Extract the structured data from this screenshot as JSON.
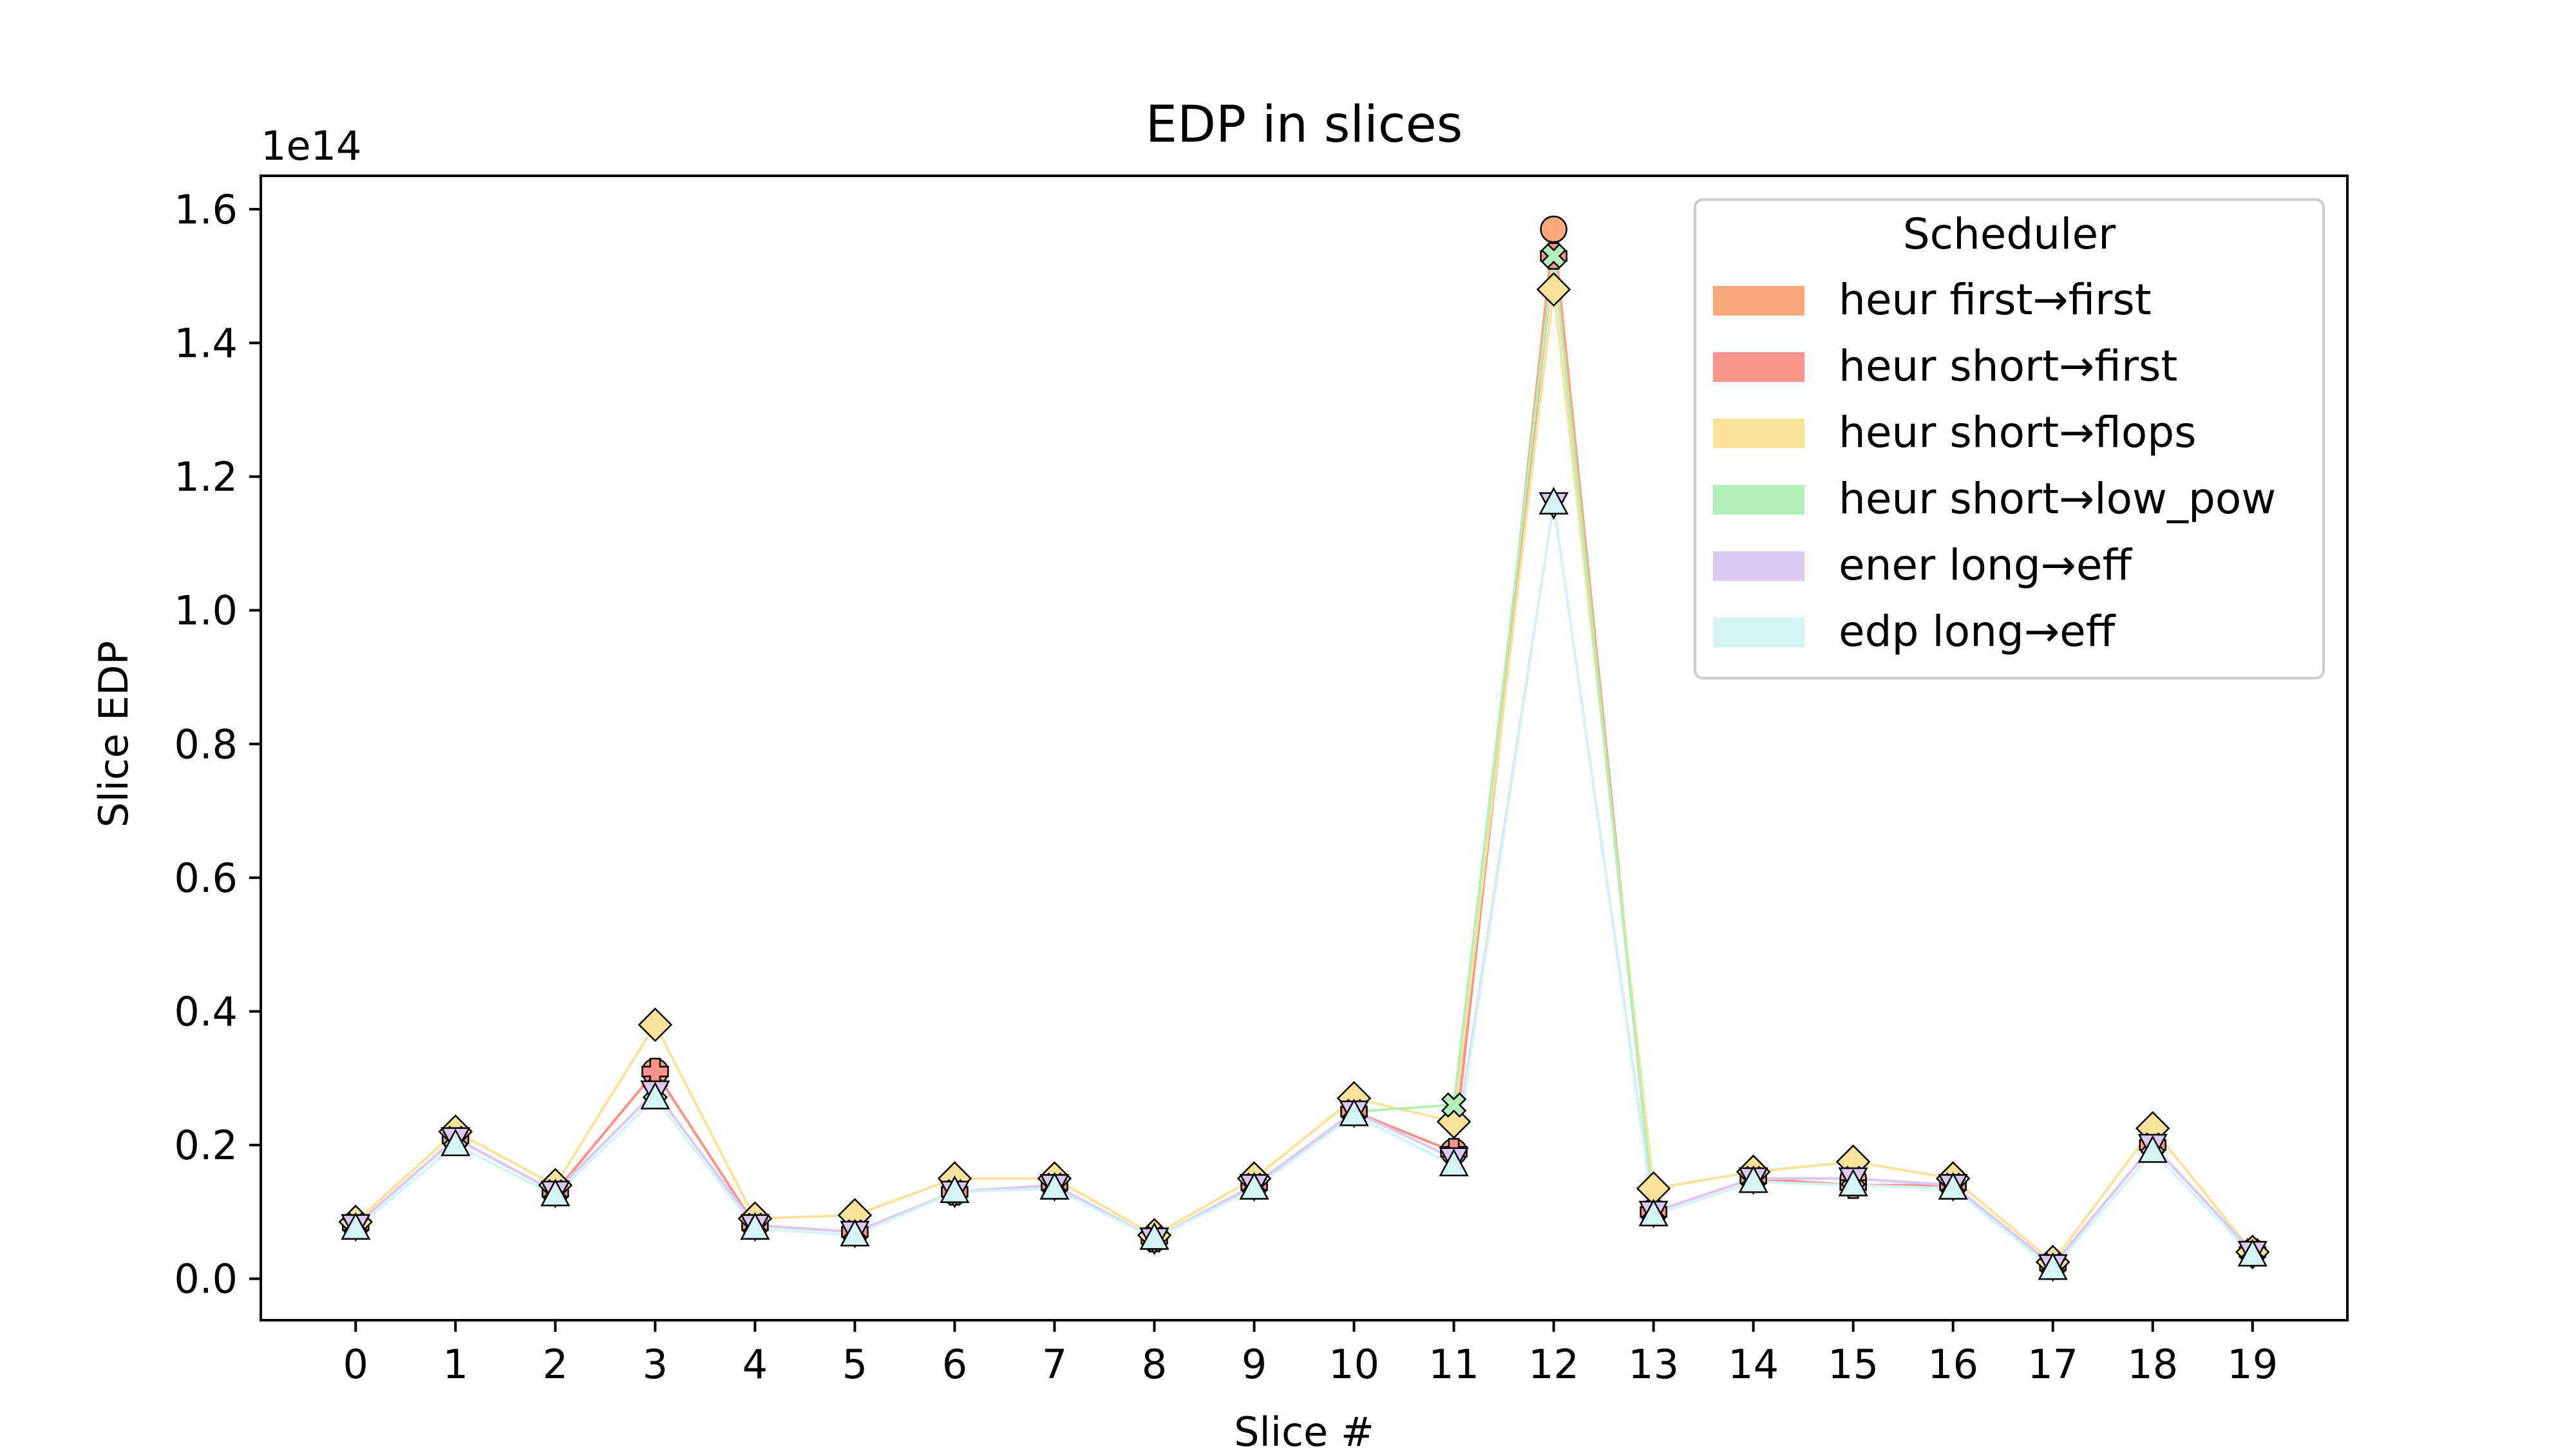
{
  "chart_data": {
    "type": "line",
    "title": "EDP in slices",
    "xlabel": "Slice #",
    "ylabel": "Slice EDP",
    "y_offset_text": "1e14",
    "x": [
      0,
      1,
      2,
      3,
      4,
      5,
      6,
      7,
      8,
      9,
      10,
      11,
      12,
      13,
      14,
      15,
      16,
      17,
      18,
      19
    ],
    "x_tick_labels": [
      "0",
      "1",
      "2",
      "3",
      "4",
      "5",
      "6",
      "7",
      "8",
      "9",
      "10",
      "11",
      "12",
      "13",
      "14",
      "15",
      "16",
      "17",
      "18",
      "19"
    ],
    "y_ticks": [
      0.0,
      0.2,
      0.4,
      0.6,
      0.8,
      1.0,
      1.2,
      1.4,
      1.6
    ],
    "y_tick_labels": [
      "0.0",
      "0.2",
      "0.4",
      "0.6",
      "0.8",
      "1.0",
      "1.2",
      "1.4",
      "1.6"
    ],
    "xlim": [
      -0.95,
      19.95
    ],
    "ylim": [
      -0.062,
      1.65
    ],
    "grid": false,
    "legend": {
      "title": "Scheduler",
      "position": "upper right"
    },
    "series": [
      {
        "name": "heur first→first",
        "color": "#f9a97b",
        "marker": "circle",
        "values": [
          0.08,
          0.21,
          0.13,
          0.31,
          0.08,
          0.07,
          0.13,
          0.14,
          0.06,
          0.14,
          0.25,
          0.19,
          1.57,
          0.1,
          0.15,
          0.15,
          0.14,
          0.02,
          0.2,
          0.04
        ]
      },
      {
        "name": "heur short→first",
        "color": "#f7958a",
        "marker": "plus",
        "values": [
          0.08,
          0.21,
          0.13,
          0.31,
          0.08,
          0.07,
          0.13,
          0.14,
          0.06,
          0.14,
          0.25,
          0.19,
          1.53,
          0.1,
          0.15,
          0.14,
          0.14,
          0.02,
          0.2,
          0.04
        ]
      },
      {
        "name": "heur short→flops",
        "color": "#fbe29b",
        "marker": "diamond",
        "values": [
          0.085,
          0.22,
          0.14,
          0.38,
          0.09,
          0.095,
          0.15,
          0.15,
          0.065,
          0.15,
          0.27,
          0.235,
          1.48,
          0.135,
          0.16,
          0.175,
          0.15,
          0.025,
          0.225,
          0.04
        ]
      },
      {
        "name": "heur short→low_pow",
        "color": "#b2f0b8",
        "marker": "x",
        "values": [
          0.08,
          0.21,
          0.13,
          0.28,
          0.08,
          0.07,
          0.13,
          0.14,
          0.06,
          0.14,
          0.25,
          0.26,
          1.53,
          0.1,
          0.15,
          0.15,
          0.14,
          0.02,
          0.2,
          0.04
        ]
      },
      {
        "name": "ener long→eff",
        "color": "#dcc8f2",
        "marker": "triangle-down",
        "values": [
          0.08,
          0.21,
          0.13,
          0.28,
          0.08,
          0.07,
          0.13,
          0.14,
          0.06,
          0.14,
          0.25,
          0.18,
          1.16,
          0.1,
          0.15,
          0.15,
          0.14,
          0.02,
          0.2,
          0.04
        ]
      },
      {
        "name": "edp long→eff",
        "color": "#d3f3f5",
        "marker": "triangle-up",
        "values": [
          0.075,
          0.2,
          0.125,
          0.27,
          0.075,
          0.065,
          0.13,
          0.135,
          0.06,
          0.135,
          0.245,
          0.17,
          1.16,
          0.095,
          0.145,
          0.14,
          0.135,
          0.015,
          0.19,
          0.035
        ]
      }
    ]
  }
}
